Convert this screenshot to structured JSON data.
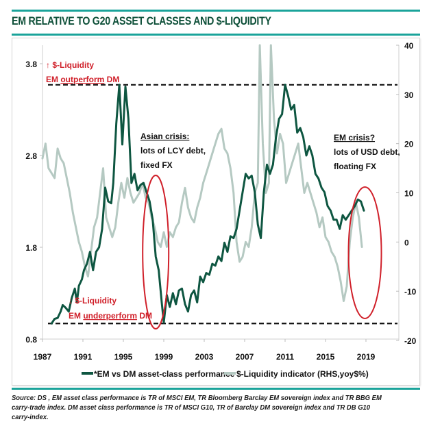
{
  "header": {
    "title": "EM RELATIVE TO G20 ASSET CLASSES  AND  $-LIQUIDITY"
  },
  "footer": {
    "source": "Source: DS , EM asset class performance is TR of MSCI EM, TR Bloomberg Barclay EM sovereign index and TR BBG EM carry-trade index. DM asset class performance is TR of MSCI G10, TR of Barclay DM sovereign index and TR DB G10 carry-index."
  },
  "colors": {
    "accent_rule": "#1aa39a",
    "title": "#0d4f38",
    "em_series": "#0e5641",
    "liquidity_series": "#b5c9c2",
    "annotation_red": "#d0202a"
  },
  "chart_data": {
    "type": "line",
    "title": "EM RELATIVE TO G20 ASSET CLASSES  AND  $-LIQUIDITY",
    "xlabel": "",
    "ylabel": "",
    "y2label": "",
    "xlim": [
      1987,
      2023
    ],
    "ylim": [
      0.8,
      4.0
    ],
    "y2lim": [
      -20,
      40
    ],
    "x_ticks": [
      "1987",
      "1991",
      "1995",
      "1999",
      "2003",
      "2007",
      "2011",
      "2015",
      "2019"
    ],
    "y_ticks": [
      "0.8",
      "1.8",
      "2.8",
      "3.8"
    ],
    "y2_ticks": [
      "-20",
      "-10",
      "0",
      "10",
      "20",
      "30",
      "40"
    ],
    "grid": false,
    "legend_position": "bottom",
    "reference_lines": [
      {
        "axis": "left",
        "value": 3.57,
        "style": "dashed"
      },
      {
        "axis": "left",
        "value": 0.97,
        "style": "dashed"
      }
    ],
    "series": [
      {
        "name": "*EM vs DM asset-class performance",
        "axis": "left",
        "x": [
          1987.9,
          1988.2,
          1988.5,
          1988.8,
          1989.0,
          1989.3,
          1989.6,
          1989.9,
          1990.2,
          1990.4,
          1990.6,
          1990.9,
          1991.1,
          1991.4,
          1991.7,
          1992.0,
          1992.3,
          1992.6,
          1992.9,
          1993.2,
          1993.5,
          1993.8,
          1994.0,
          1994.3,
          1994.6,
          1994.9,
          1995.2,
          1995.5,
          1995.8,
          1996.1,
          1996.4,
          1996.7,
          1997.0,
          1997.3,
          1997.6,
          1997.9,
          1998.2,
          1998.5,
          1998.8,
          1999.0,
          1999.3,
          1999.6,
          1999.9,
          2000.2,
          2000.5,
          2000.8,
          2001.1,
          2001.4,
          2001.7,
          2002.0,
          2002.3,
          2002.6,
          2002.9,
          2003.2,
          2003.5,
          2003.8,
          2004.1,
          2004.4,
          2004.7,
          2005.0,
          2005.3,
          2005.6,
          2005.9,
          2006.2,
          2006.5,
          2006.8,
          2007.1,
          2007.4,
          2007.7,
          2008.0,
          2008.3,
          2008.6,
          2008.9,
          2009.2,
          2009.5,
          2009.8,
          2010.1,
          2010.4,
          2010.7,
          2011.0,
          2011.3,
          2011.6,
          2011.9,
          2012.2,
          2012.5,
          2012.8,
          2013.1,
          2013.4,
          2013.7,
          2014.0,
          2014.3,
          2014.6,
          2014.9,
          2015.2,
          2015.5,
          2015.8,
          2016.1,
          2016.4,
          2016.7,
          2017.0,
          2017.3,
          2017.6,
          2017.9,
          2018.2,
          2018.5,
          2018.8
        ],
        "values": [
          0.97,
          1.02,
          1.03,
          1.1,
          1.17,
          1.14,
          1.1,
          1.25,
          1.35,
          1.2,
          1.38,
          1.45,
          1.55,
          1.62,
          1.75,
          1.55,
          1.75,
          1.8,
          2.0,
          2.45,
          2.3,
          2.28,
          2.5,
          3.15,
          3.57,
          2.92,
          3.55,
          3.2,
          2.5,
          2.6,
          2.42,
          2.48,
          2.5,
          2.4,
          2.3,
          2.1,
          1.7,
          1.55,
          1.2,
          0.98,
          1.28,
          1.15,
          1.3,
          1.18,
          1.33,
          1.35,
          1.18,
          1.1,
          1.28,
          1.33,
          1.2,
          1.48,
          1.42,
          1.52,
          1.5,
          1.62,
          1.6,
          1.7,
          1.65,
          1.85,
          1.75,
          1.92,
          1.9,
          2.0,
          2.2,
          2.4,
          2.6,
          2.55,
          2.58,
          2.4,
          2.05,
          1.9,
          2.4,
          2.7,
          2.6,
          2.7,
          3.0,
          3.2,
          3.25,
          3.57,
          3.45,
          3.3,
          3.35,
          3.05,
          3.1,
          3.0,
          2.8,
          2.9,
          2.8,
          2.6,
          2.55,
          2.45,
          2.4,
          2.25,
          2.2,
          2.1,
          2.1,
          2.0,
          2.15,
          2.1,
          2.15,
          2.2,
          2.25,
          2.32,
          2.3,
          2.2
        ]
      },
      {
        "name": "$-Liquidity indicator (RHS,yoy$%)",
        "axis": "right",
        "x": [
          1987.0,
          1987.3,
          1987.6,
          1987.9,
          1988.2,
          1988.5,
          1988.8,
          1989.1,
          1989.4,
          1989.7,
          1990.0,
          1990.3,
          1990.6,
          1990.9,
          1991.2,
          1991.5,
          1991.8,
          1992.1,
          1992.4,
          1992.7,
          1993.0,
          1993.3,
          1993.6,
          1993.9,
          1994.2,
          1994.5,
          1994.8,
          1995.1,
          1995.4,
          1995.7,
          1996.0,
          1996.3,
          1996.6,
          1996.9,
          1997.2,
          1997.5,
          1997.8,
          1998.1,
          1998.4,
          1998.7,
          1999.0,
          1999.3,
          1999.6,
          1999.9,
          2000.2,
          2000.5,
          2000.8,
          2001.1,
          2001.4,
          2001.7,
          2002.0,
          2002.3,
          2002.6,
          2002.9,
          2003.2,
          2003.5,
          2003.8,
          2004.1,
          2004.4,
          2004.7,
          2005.0,
          2005.3,
          2005.6,
          2005.9,
          2006.2,
          2006.5,
          2006.8,
          2007.1,
          2007.4,
          2007.7,
          2008.0,
          2008.3,
          2008.5,
          2008.8,
          2009.1,
          2009.4,
          2009.6,
          2009.9,
          2010.2,
          2010.5,
          2010.8,
          2011.1,
          2011.4,
          2011.7,
          2012.0,
          2012.3,
          2012.6,
          2012.9,
          2013.2,
          2013.5,
          2013.8,
          2014.1,
          2014.4,
          2014.7,
          2015.0,
          2015.3,
          2015.6,
          2015.9,
          2016.2,
          2016.5,
          2016.8,
          2017.1,
          2017.4,
          2017.7,
          2018.0,
          2018.3,
          2018.6
        ],
        "values": [
          17,
          20,
          15,
          14,
          13,
          19,
          17,
          16,
          13,
          10,
          6,
          3,
          0,
          -2,
          -5,
          -7,
          -2,
          3,
          5,
          10,
          15,
          5,
          3,
          1,
          3,
          8,
          12,
          9,
          13,
          10,
          8,
          9,
          10,
          12,
          9,
          8,
          5,
          3,
          0,
          -1,
          2,
          -1,
          2,
          1,
          3,
          4,
          8,
          11,
          7,
          5,
          4,
          7,
          9,
          12,
          14,
          16,
          18,
          20,
          22,
          23,
          19,
          18,
          15,
          10,
          0,
          -4,
          -3,
          0,
          -1,
          3,
          10,
          12,
          40,
          20,
          10,
          12,
          40,
          25,
          18,
          22,
          20,
          12,
          14,
          16,
          18,
          20,
          15,
          10,
          12,
          10,
          8,
          6,
          3,
          5,
          1,
          0,
          -2,
          -3,
          -5,
          -8,
          -12,
          -9,
          0,
          5,
          8,
          5,
          -1
        ]
      }
    ],
    "annotations": [
      {
        "text": "↑ $-Liquidity",
        "color": "red"
      },
      {
        "text": "EM outperform DM",
        "underline": "outperform",
        "color": "red"
      },
      {
        "text": "↓ $-Liquidity",
        "color": "red"
      },
      {
        "text": "EM underperform DM",
        "underline": "underperform",
        "color": "red"
      },
      {
        "text": "Asian crisis:",
        "underline": true
      },
      {
        "text": "lots of LCY debt,"
      },
      {
        "text": "fixed FX"
      },
      {
        "text": "EM crisis?",
        "underline": true
      },
      {
        "text": "lots of USD debt,"
      },
      {
        "text": "floating FX"
      }
    ],
    "highlight_ellipses": [
      {
        "label": "Asian crisis",
        "x_center": 1998.2
      },
      {
        "label": "EM crisis",
        "x_center": 2018.9
      }
    ]
  }
}
